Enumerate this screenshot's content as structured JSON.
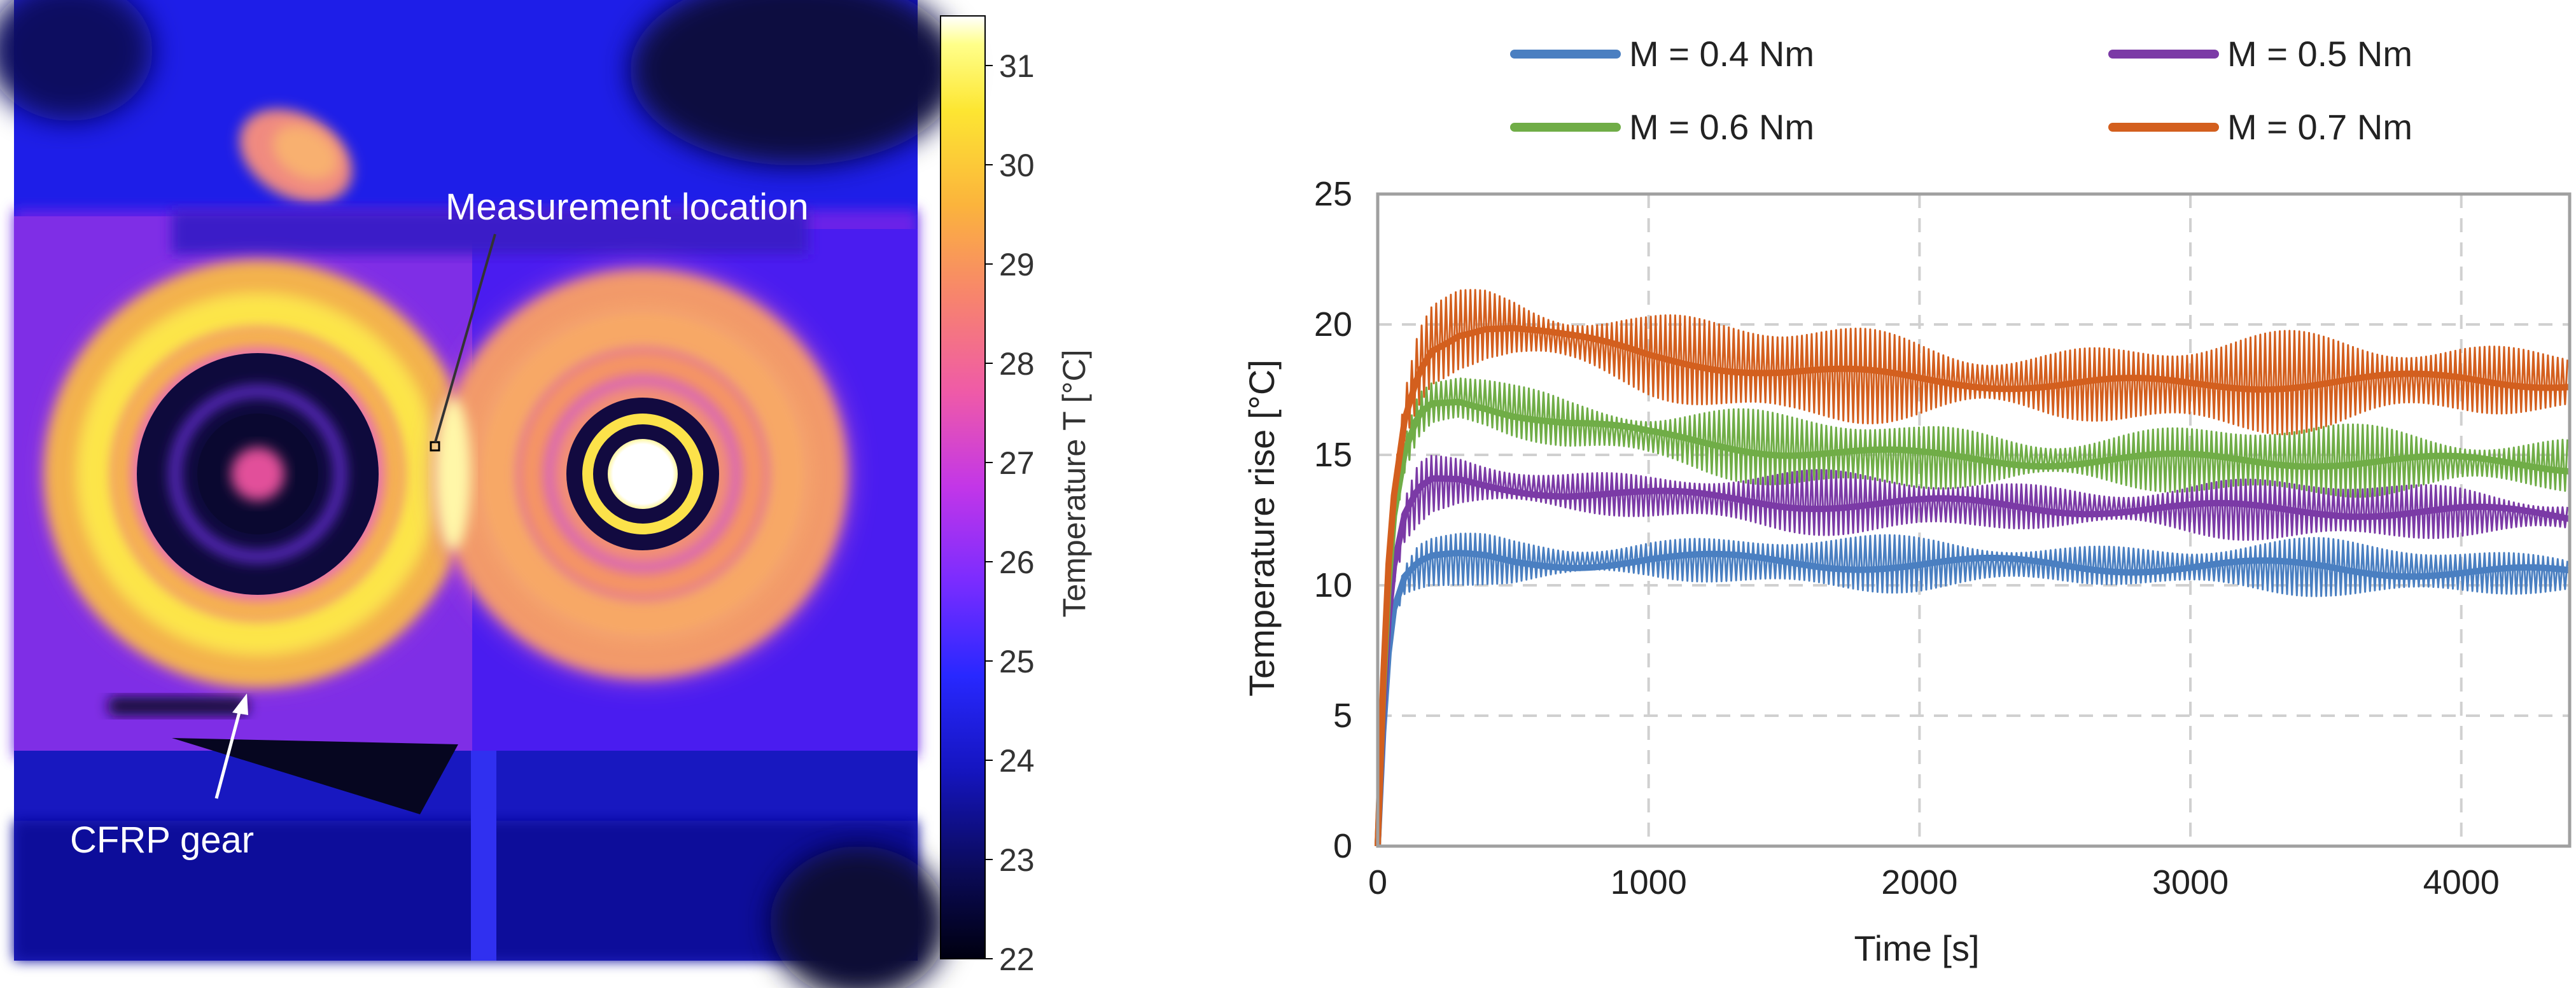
{
  "thermal": {
    "label_measurement": "Measurement location",
    "label_gear": "CFRP gear",
    "colorbar_label": "Temperature T [°C]",
    "colorbar_ticks": [
      "31",
      "30",
      "29",
      "28",
      "27",
      "26",
      "25",
      "24",
      "23",
      "22"
    ],
    "colorbar_range": [
      22,
      31.5
    ],
    "colors": {
      "background": "#1d1df0",
      "ring": "#f7c83c",
      "ring_glow": "#fce868",
      "gear_shadow": "#e06fd8",
      "dark": "#120a3a"
    }
  },
  "chart_data": {
    "type": "line",
    "title": "",
    "xlabel": "Time  [s]",
    "ylabel": "Temperature rise [°C]",
    "xlim": [
      0,
      4400
    ],
    "ylim": [
      0,
      25
    ],
    "x_ticks": [
      "0",
      "1000",
      "2000",
      "3000",
      "4000"
    ],
    "y_ticks": [
      "0",
      "5",
      "10",
      "15",
      "20",
      "25"
    ],
    "grid": true,
    "legend_position": "top",
    "series": [
      {
        "name": "M = 0.4 Nm",
        "color": "#4a7fc1",
        "oscillation_amplitude": 0.9,
        "x": [
          0,
          30,
          60,
          100,
          150,
          200,
          300,
          400,
          500,
          700,
          1000,
          1500,
          2000,
          2500,
          3000,
          3500,
          4000,
          4400
        ],
        "y": [
          0,
          6.5,
          9.0,
          10.2,
          10.7,
          10.9,
          11.0,
          11.0,
          10.9,
          10.9,
          11.0,
          10.9,
          10.8,
          10.8,
          10.7,
          10.7,
          10.5,
          10.4
        ]
      },
      {
        "name": "M = 0.5 Nm",
        "color": "#7b3aa6",
        "oscillation_amplitude": 1.0,
        "x": [
          0,
          30,
          60,
          100,
          150,
          200,
          300,
          400,
          500,
          700,
          1000,
          1500,
          2000,
          2500,
          3000,
          3500,
          4000,
          4400
        ],
        "y": [
          0,
          7.5,
          10.5,
          12.5,
          13.5,
          13.9,
          14.0,
          13.9,
          13.8,
          13.6,
          13.4,
          13.2,
          13.1,
          13.0,
          12.9,
          12.9,
          12.8,
          12.6
        ]
      },
      {
        "name": "M = 0.6 Nm",
        "color": "#70ad47",
        "oscillation_amplitude": 1.2,
        "x": [
          0,
          30,
          60,
          100,
          150,
          200,
          300,
          400,
          500,
          700,
          1000,
          1500,
          2000,
          2500,
          3000,
          3500,
          4000,
          4400
        ],
        "y": [
          0,
          8.5,
          12.5,
          15.0,
          16.5,
          17.0,
          17.2,
          17.0,
          16.7,
          16.2,
          15.7,
          15.2,
          14.9,
          14.8,
          14.8,
          14.8,
          14.7,
          14.6
        ]
      },
      {
        "name": "M = 0.7 Nm",
        "color": "#d35f1e",
        "oscillation_amplitude": 1.6,
        "x": [
          0,
          30,
          60,
          100,
          150,
          200,
          300,
          400,
          500,
          700,
          1000,
          1500,
          2000,
          2500,
          3000,
          3500,
          4000,
          4400
        ],
        "y": [
          0,
          9.5,
          13.5,
          16.5,
          18.3,
          19.2,
          19.8,
          20.0,
          19.9,
          19.4,
          18.8,
          18.2,
          17.9,
          17.7,
          17.7,
          17.8,
          17.9,
          17.8
        ]
      }
    ]
  }
}
